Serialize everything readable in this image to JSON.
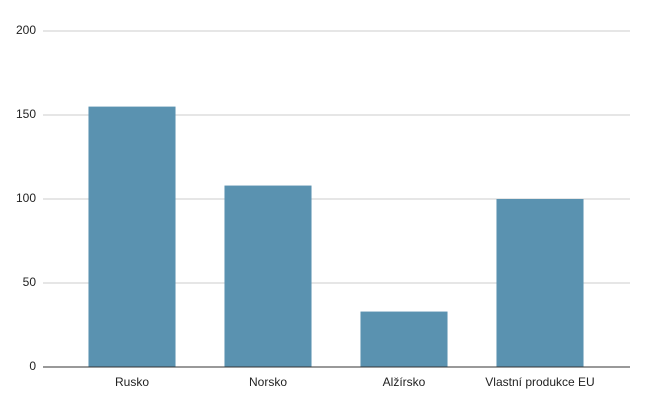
{
  "chart_data": {
    "type": "bar",
    "categories": [
      "Rusko",
      "Norsko",
      "Alžírsko",
      "Vlastní produkce EU"
    ],
    "values": [
      155,
      108,
      33,
      100
    ],
    "color": "#5a92b0",
    "ylim": [
      0,
      200
    ],
    "yticks": [
      0,
      50,
      100,
      150,
      200
    ],
    "grid": true
  }
}
